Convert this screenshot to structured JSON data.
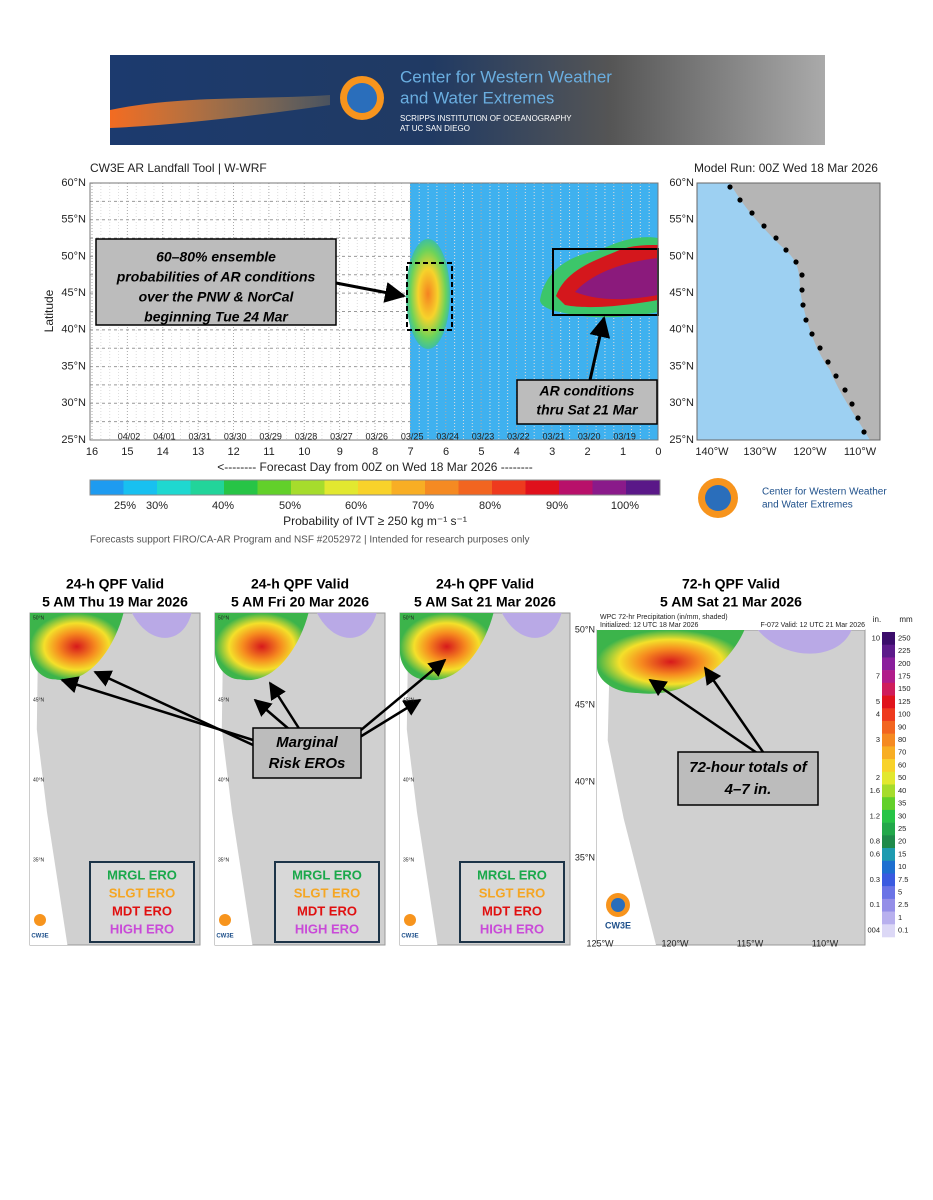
{
  "banner": {
    "org": [
      "Center for Western Weather",
      "and Water Extremes"
    ],
    "institution": [
      "SCRIPPS INSTITUTION  OF OCEANOGRAPHY",
      "AT UC SAN DIEGO"
    ]
  },
  "ar_tool": {
    "title": "CW3E AR Landfall Tool | W-WRF",
    "model_run": "Model Run: 00Z Wed 18 Mar 2026",
    "y_label": "Latitude",
    "lat_ticks": [
      "60°N",
      "55°N",
      "50°N",
      "45°N",
      "40°N",
      "35°N",
      "30°N",
      "25°N"
    ],
    "x_ticks": [
      16,
      15,
      14,
      13,
      12,
      11,
      10,
      9,
      8,
      7,
      6,
      5,
      4,
      3,
      2,
      1,
      0
    ],
    "dates": [
      "04/02",
      "04/01",
      "03/31",
      "03/30",
      "03/29",
      "03/28",
      "03/27",
      "03/26",
      "03/25",
      "03/24",
      "03/23",
      "03/22",
      "03/21",
      "03/20",
      "03/19"
    ],
    "x_label": "<-------- Forecast Day from 00Z on Wed 18 Mar 2026 --------",
    "colorbar_labels": [
      "25%",
      "30%",
      "40%",
      "50%",
      "60%",
      "70%",
      "80%",
      "90%",
      "100%"
    ],
    "colorbar_title": "Probability of IVT  ≥  250 kg m⁻¹ s⁻¹",
    "footnote": "Forecasts support FIRO/CA-AR Program and NSF #2052972 | Intended for research purposes only",
    "callout_ensemble": [
      "60–80% ensemble",
      "probabilities of AR conditions",
      "over the PNW & NorCal",
      "beginning Tue 24 Mar"
    ],
    "callout_ar": [
      "AR conditions",
      "thru Sat 21 Mar"
    ],
    "map_lon_ticks": [
      "140°W",
      "130°W",
      "120°W",
      "110°W"
    ],
    "map_lat_ticks": [
      "60°N",
      "55°N",
      "50°N",
      "45°N",
      "40°N",
      "35°N",
      "30°N",
      "25°N"
    ],
    "logo": [
      "Center for Western Weather",
      "and Water Extremes"
    ]
  },
  "qpf": {
    "panels": [
      {
        "title": [
          "24-h QPF Valid",
          "5 AM Thu 19 Mar 2026"
        ]
      },
      {
        "title": [
          "24-h QPF Valid",
          "5 AM Fri 20 Mar 2026"
        ]
      },
      {
        "title": [
          "24-h QPF Valid",
          "5 AM Sat 21 Mar 2026"
        ]
      }
    ],
    "small_lat_ticks": [
      "50°N",
      "45°N",
      "40°N",
      "35°N"
    ],
    "ero_legend": [
      "MRGL ERO",
      "SLGT ERO",
      "MDT ERO",
      "HIGH ERO"
    ],
    "callout_marginal": [
      "Marginal",
      "Risk EROs"
    ],
    "logo_text": "CW3E",
    "panel72": {
      "title": [
        "72-h QPF Valid",
        "5 AM Sat 21 Mar 2026"
      ],
      "header": [
        "WPC 72-hr Precipitation (in/mm, shaded)",
        "Initialized: 12 UTC 18 Mar 2026",
        "F-072  Valid: 12 UTC 21 Mar 2026"
      ],
      "lat_ticks": [
        "50°N",
        "45°N",
        "40°N",
        "35°N"
      ],
      "lon_ticks": [
        "125°W",
        "120°W",
        "115°W",
        "110°W"
      ],
      "callout": [
        "72-hour totals of",
        "4–7 in."
      ],
      "unit_in": "in.",
      "unit_mm": "mm",
      "in_labels": [
        10,
        7,
        5,
        4,
        3,
        2,
        1.6,
        1.2,
        0.8,
        0.6,
        0.3,
        0.1,
        "004"
      ],
      "mm_labels": [
        250,
        225,
        200,
        175,
        150,
        125,
        100,
        90,
        80,
        70,
        60,
        50,
        40,
        35,
        30,
        25,
        20,
        15,
        10,
        7.5,
        5,
        2.5,
        1,
        0.1
      ]
    }
  }
}
